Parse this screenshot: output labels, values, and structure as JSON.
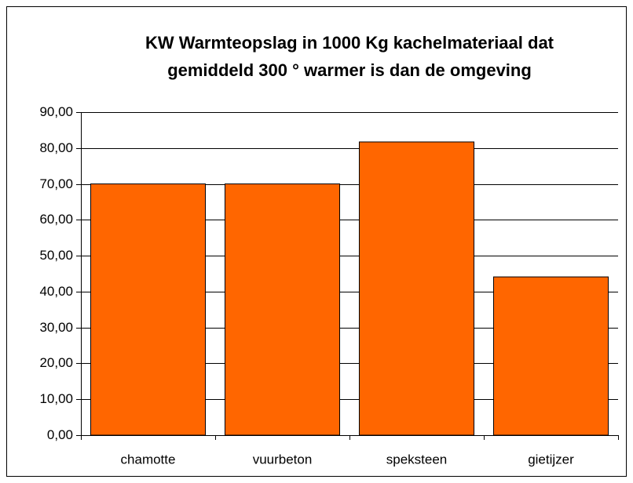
{
  "chart_data": {
    "type": "bar",
    "title": [
      "KW Warmteopslag in 1000 Kg kachelmateriaal dat",
      "gemiddeld 300 ° warmer is dan de omgeving"
    ],
    "categories": [
      "chamotte",
      "vuurbeton",
      "speksteen",
      "gietijzer"
    ],
    "values": [
      70,
      70,
      81.7,
      44.1
    ],
    "color": "#ff6600",
    "ylim": [
      0,
      90
    ],
    "yticks": [
      {
        "value": 0,
        "label": "0,00"
      },
      {
        "value": 10,
        "label": "10,00"
      },
      {
        "value": 20,
        "label": "20,00"
      },
      {
        "value": 30,
        "label": "30,00"
      },
      {
        "value": 40,
        "label": "40,00"
      },
      {
        "value": 50,
        "label": "50,00"
      },
      {
        "value": 60,
        "label": "60,00"
      },
      {
        "value": 70,
        "label": "70,00"
      },
      {
        "value": 80,
        "label": "80,00"
      },
      {
        "value": 90,
        "label": "90,00"
      }
    ],
    "grid": true
  }
}
